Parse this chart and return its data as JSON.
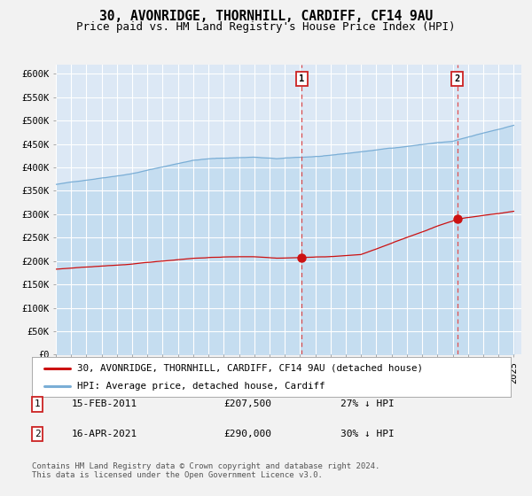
{
  "title": "30, AVONRIDGE, THORNHILL, CARDIFF, CF14 9AU",
  "subtitle": "Price paid vs. HM Land Registry's House Price Index (HPI)",
  "ylabel_ticks": [
    "£0",
    "£50K",
    "£100K",
    "£150K",
    "£200K",
    "£250K",
    "£300K",
    "£350K",
    "£400K",
    "£450K",
    "£500K",
    "£550K",
    "£600K"
  ],
  "ytick_values": [
    0,
    50000,
    100000,
    150000,
    200000,
    250000,
    300000,
    350000,
    400000,
    450000,
    500000,
    550000,
    600000
  ],
  "xlim_start": 1995.0,
  "xlim_end": 2025.5,
  "ylim": [
    0,
    620000
  ],
  "fig_bg": "#f2f2f2",
  "plot_bg": "#dce8f5",
  "grid_color": "#ffffff",
  "hpi_line_color": "#7aaed6",
  "hpi_fill_color": "#c5ddf0",
  "price_line_color": "#cc1111",
  "vline_color": "#e05050",
  "marker_color": "#cc1111",
  "sale1_x": 2011.12,
  "sale1_y": 207500,
  "sale2_x": 2021.29,
  "sale2_y": 290000,
  "legend_label1": "30, AVONRIDGE, THORNHILL, CARDIFF, CF14 9AU (detached house)",
  "legend_label2": "HPI: Average price, detached house, Cardiff",
  "table_row1": [
    "1",
    "15-FEB-2011",
    "£207,500",
    "27% ↓ HPI"
  ],
  "table_row2": [
    "2",
    "16-APR-2021",
    "£290,000",
    "30% ↓ HPI"
  ],
  "footer": "Contains HM Land Registry data © Crown copyright and database right 2024.\nThis data is licensed under the Open Government Licence v3.0.",
  "title_fontsize": 10.5,
  "subtitle_fontsize": 9,
  "tick_fontsize": 7.5,
  "legend_fontsize": 7.8,
  "table_fontsize": 8,
  "footer_fontsize": 6.5
}
